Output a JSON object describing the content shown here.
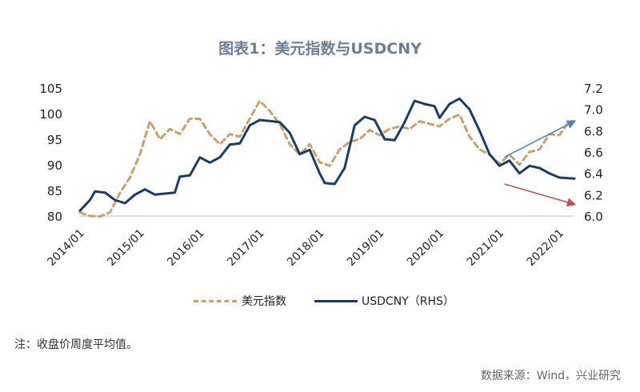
{
  "title": "图表1：美元指数与USDCNY",
  "note": "注：收盘价周度平均值。",
  "source": "数据来源：Wind，兴业研究",
  "colors": {
    "dxy": "#c9a26a",
    "usdcny": "#173e6b",
    "arrow_up": "#4a86c5",
    "arrow_down": "#c0504d",
    "axis": "#bdbdbd"
  },
  "chart_data": {
    "type": "line",
    "x_ticks": [
      "2014/01",
      "2015/01",
      "2016/01",
      "2017/01",
      "2018/01",
      "2019/01",
      "2020/01",
      "2021/01",
      "2022/01"
    ],
    "xlim": [
      "2014/01",
      "2022/04"
    ],
    "ylim_left": [
      80,
      105
    ],
    "y_ticks_left": [
      80,
      85,
      90,
      95,
      100,
      105
    ],
    "ylim_right": [
      6.0,
      7.2
    ],
    "y_ticks_right": [
      6.0,
      6.2,
      6.4,
      6.6,
      6.8,
      7.0,
      7.2
    ],
    "series": [
      {
        "name": "美元指数",
        "axis": "left",
        "style": "dashed",
        "points": [
          [
            "2014/01",
            80.7
          ],
          [
            "2014/03",
            80.0
          ],
          [
            "2014/05",
            79.9
          ],
          [
            "2014/07",
            80.7
          ],
          [
            "2014/09",
            84.5
          ],
          [
            "2014/11",
            87.5
          ],
          [
            "2015/01",
            92.0
          ],
          [
            "2015/03",
            98.5
          ],
          [
            "2015/05",
            95.0
          ],
          [
            "2015/07",
            97.0
          ],
          [
            "2015/09",
            96.0
          ],
          [
            "2015/11",
            99.0
          ],
          [
            "2016/01",
            99.0
          ],
          [
            "2016/03",
            96.0
          ],
          [
            "2016/05",
            94.0
          ],
          [
            "2016/07",
            96.0
          ],
          [
            "2016/09",
            95.5
          ],
          [
            "2016/11",
            99.0
          ],
          [
            "2017/01",
            102.5
          ],
          [
            "2017/03",
            100.5
          ],
          [
            "2017/05",
            98.0
          ],
          [
            "2017/07",
            94.0
          ],
          [
            "2017/09",
            92.0
          ],
          [
            "2017/11",
            94.0
          ],
          [
            "2018/01",
            90.5
          ],
          [
            "2018/03",
            89.8
          ],
          [
            "2018/05",
            93.0
          ],
          [
            "2018/07",
            94.5
          ],
          [
            "2018/09",
            95.0
          ],
          [
            "2018/11",
            96.8
          ],
          [
            "2019/01",
            95.8
          ],
          [
            "2019/03",
            97.0
          ],
          [
            "2019/05",
            97.5
          ],
          [
            "2019/07",
            97.0
          ],
          [
            "2019/09",
            98.5
          ],
          [
            "2019/11",
            98.0
          ],
          [
            "2020/01",
            97.5
          ],
          [
            "2020/03",
            99.0
          ],
          [
            "2020/05",
            99.8
          ],
          [
            "2020/07",
            95.5
          ],
          [
            "2020/09",
            93.0
          ],
          [
            "2020/11",
            92.0
          ],
          [
            "2021/01",
            90.2
          ],
          [
            "2021/03",
            92.0
          ],
          [
            "2021/05",
            90.0
          ],
          [
            "2021/07",
            92.5
          ],
          [
            "2021/09",
            93.0
          ],
          [
            "2021/11",
            96.0
          ],
          [
            "2022/01",
            95.8
          ],
          [
            "2022/03",
            98.5
          ],
          [
            "2022/04",
            98.5
          ]
        ]
      },
      {
        "name": "USDCNY（RHS）",
        "axis": "right",
        "style": "solid",
        "points": [
          [
            "2014/01",
            6.05
          ],
          [
            "2014/03",
            6.15
          ],
          [
            "2014/04",
            6.23
          ],
          [
            "2014/06",
            6.22
          ],
          [
            "2014/08",
            6.15
          ],
          [
            "2014/10",
            6.12
          ],
          [
            "2014/12",
            6.2
          ],
          [
            "2015/02",
            6.25
          ],
          [
            "2015/04",
            6.2
          ],
          [
            "2015/06",
            6.21
          ],
          [
            "2015/08",
            6.22
          ],
          [
            "2015/09",
            6.37
          ],
          [
            "2015/11",
            6.38
          ],
          [
            "2016/01",
            6.55
          ],
          [
            "2016/03",
            6.5
          ],
          [
            "2016/05",
            6.55
          ],
          [
            "2016/07",
            6.67
          ],
          [
            "2016/09",
            6.68
          ],
          [
            "2016/11",
            6.85
          ],
          [
            "2017/01",
            6.9
          ],
          [
            "2017/03",
            6.89
          ],
          [
            "2017/05",
            6.88
          ],
          [
            "2017/07",
            6.78
          ],
          [
            "2017/09",
            6.58
          ],
          [
            "2017/11",
            6.62
          ],
          [
            "2018/01",
            6.4
          ],
          [
            "2018/02",
            6.31
          ],
          [
            "2018/04",
            6.3
          ],
          [
            "2018/06",
            6.45
          ],
          [
            "2018/08",
            6.85
          ],
          [
            "2018/10",
            6.93
          ],
          [
            "2018/12",
            6.9
          ],
          [
            "2019/02",
            6.72
          ],
          [
            "2019/04",
            6.71
          ],
          [
            "2019/06",
            6.88
          ],
          [
            "2019/08",
            7.08
          ],
          [
            "2019/10",
            7.05
          ],
          [
            "2019/12",
            7.03
          ],
          [
            "2020/01",
            6.92
          ],
          [
            "2020/03",
            7.05
          ],
          [
            "2020/05",
            7.1
          ],
          [
            "2020/07",
            7.0
          ],
          [
            "2020/09",
            6.8
          ],
          [
            "2020/11",
            6.58
          ],
          [
            "2021/01",
            6.47
          ],
          [
            "2021/03",
            6.52
          ],
          [
            "2021/05",
            6.4
          ],
          [
            "2021/07",
            6.47
          ],
          [
            "2021/09",
            6.45
          ],
          [
            "2021/11",
            6.4
          ],
          [
            "2022/01",
            6.36
          ],
          [
            "2022/04",
            6.35
          ]
        ]
      }
    ],
    "annotations": [
      {
        "type": "arrow",
        "color": "arrow_up",
        "axis": "left",
        "from": [
          "2021/02",
          91.5
        ],
        "to": [
          "2022/04",
          98.5
        ]
      },
      {
        "type": "arrow",
        "color": "arrow_down",
        "axis": "right",
        "from": [
          "2021/02",
          6.3
        ],
        "to": [
          "2022/04",
          6.11
        ]
      }
    ],
    "legend_position": "bottom"
  }
}
